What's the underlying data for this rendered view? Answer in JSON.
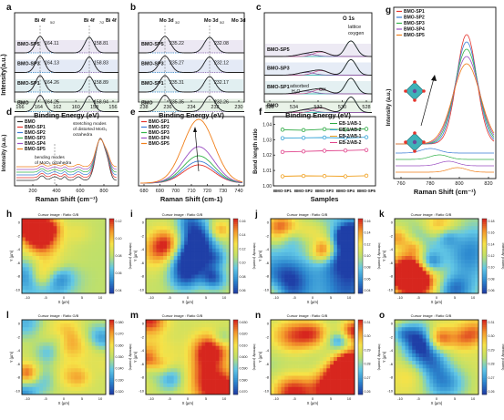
{
  "colors": {
    "frame": "#111111",
    "stack_fill": [
      "#dcd6e9",
      "#cdd9ee",
      "#c9e2e6",
      "#d3e8d1",
      "#e6dcd2"
    ],
    "fit_a": "#7b5aa6",
    "fit_b": "#2e7fc0",
    "fit_c": "#1aa5a0",
    "fit_d": "#c6478a",
    "series": [
      "#2b2b2b",
      "#e5342c",
      "#3a7bd5",
      "#33b34a",
      "#9b4fc2",
      "#f07f1a"
    ],
    "ratio": [
      "#2eaa44",
      "#34a3d6",
      "#f0a020",
      "#e0458c"
    ],
    "heat": [
      "#1f3fa7",
      "#2d8ad0",
      "#63c8e6",
      "#bfe06a",
      "#f6e247",
      "#f49a2c",
      "#d7261e"
    ]
  },
  "panels": {
    "a": {
      "letter": "a",
      "xlabel": "Binding Energy (eV)",
      "ylabel": "Intensity(a.u.)",
      "ticks": [
        "166",
        "164",
        "162",
        "160",
        "158",
        "156"
      ],
      "headers": [
        "Bi 4f",
        "Bi 4f",
        "Bi 4f"
      ],
      "header_subs": [
        "5/2",
        "7/2",
        ""
      ],
      "rows": [
        {
          "label": "BMO-SP5",
          "v1": "164.11",
          "v2": "158.81"
        },
        {
          "label": "BMO-SP3",
          "v1": "164.13",
          "v2": "158.83"
        },
        {
          "label": "BMO-SP1",
          "v1": "164.26",
          "v2": "158.89"
        },
        {
          "label": "BMO",
          "v1": "164.25",
          "v2": "158.94"
        }
      ]
    },
    "b": {
      "letter": "b",
      "xlabel": "Binding Energy (eV)",
      "ticks": [
        "238",
        "236",
        "234",
        "232",
        "230"
      ],
      "headers": [
        "Mo 3d",
        "Mo 3d",
        "Mo 3d"
      ],
      "header_subs": [
        "3/2",
        "5/2",
        ""
      ],
      "rows": [
        {
          "label": "BMO-SP5",
          "v1": "235.22",
          "v2": "232.08"
        },
        {
          "label": "BMO-SP3",
          "v1": "235.27",
          "v2": "232.12"
        },
        {
          "label": "BMO-SP1",
          "v1": "235.31",
          "v2": "232.17"
        },
        {
          "label": "BMO",
          "v1": "235.35",
          "v2": "232.26"
        }
      ]
    },
    "c": {
      "letter": "c",
      "xlabel": "Binding Energy (eV)",
      "ticks": [
        "536",
        "534",
        "532",
        "530",
        "528"
      ],
      "title": "O 1s",
      "lattice1": "lattice",
      "lattice2": "oxygen",
      "adsorbed": "adsorbed",
      "water": "H₂O",
      "oh": "OH",
      "rows": [
        "BMO-SP5",
        "BMO-SP3",
        "BMO-SP1",
        "BMO"
      ]
    },
    "d": {
      "letter": "d",
      "xlabel": "Raman Shift (cm⁻¹)",
      "ylabel": "Intensity (a.u.)",
      "ticks": [
        "200",
        "400",
        "600",
        "800"
      ],
      "legend": [
        "BMO",
        "BMO-SP1",
        "BMO-SP2",
        "BMO-SP3",
        "BMO-SP4",
        "BMO-SP5"
      ],
      "note1": [
        "stretching modes",
        "of distorted MoO₆",
        "octahedra"
      ],
      "note2": [
        "bending modes",
        "of MoO₆ octahedra"
      ]
    },
    "e": {
      "letter": "e",
      "xlabel": "Raman Shift (cm-1)",
      "ticks": [
        "680",
        "690",
        "700",
        "710",
        "720",
        "730",
        "740"
      ],
      "legend": [
        "BMO-SP1",
        "BMO-SP2",
        "BMO-SP3",
        "BMO-SP4",
        "BMO-SP5"
      ]
    },
    "f": {
      "letter": "f",
      "xlabel": "Samples",
      "ylabel": "Bond length ratio",
      "ticks_y": [
        "1.00",
        "1.01",
        "1.02",
        "1.03",
        "1.04"
      ],
      "samples": [
        "BMO-SP1",
        "BMO-SP2",
        "BMO-SP3",
        "BMO-SP4",
        "BMO-SP5"
      ],
      "series": [
        {
          "name": "EB-1/AB-1",
          "values": [
            1.0365,
            1.0362,
            1.0368,
            1.0366,
            1.037
          ]
        },
        {
          "name": "EB-1/AB-2",
          "values": [
            1.031,
            1.0312,
            1.0314,
            1.0311,
            1.0316
          ]
        },
        {
          "name": "EB-2/AB-1",
          "values": [
            1.0062,
            1.0065,
            1.0064,
            1.0062,
            1.0066
          ]
        },
        {
          "name": "EB-2/AB-2",
          "values": [
            1.022,
            1.0224,
            1.0228,
            1.023,
            1.0233
          ]
        }
      ],
      "ylim": [
        1.0,
        1.045
      ]
    },
    "g": {
      "letter": "g",
      "xlabel": "Raman Shift (cm⁻¹)",
      "ylabel": "Intensity (a.u.)",
      "ticks": [
        "760",
        "780",
        "800",
        "820"
      ],
      "legend": [
        "BMO-SP1",
        "BMO-SP2",
        "BMO-SP3",
        "BMO-SP4",
        "BMO-SP5"
      ]
    },
    "maps": [
      {
        "letter": "h",
        "title": "Cursor image : Ratio G/B",
        "xlabel": "X (µm)",
        "ylabel": "Y (µm)",
        "cbar_label": "Intensity (counts)",
        "cbar": [
          "0.12",
          "0.10",
          "0.08",
          "0.06",
          "0.04"
        ]
      },
      {
        "letter": "i",
        "title": "Cursor image : Ratio G/B",
        "xlabel": "X (µm)",
        "ylabel": "Y (µm)",
        "cbar_label": "Intensity (counts)",
        "cbar": [
          "0.16",
          "0.14",
          "0.12",
          "0.10",
          "0.08",
          "0.06"
        ]
      },
      {
        "letter": "j",
        "title": "Cursor image : Ratio G/B",
        "xlabel": "X (µm)",
        "ylabel": "Y (µm)",
        "cbar_label": "Intensity (counts)",
        "cbar": [
          "0.16",
          "0.14",
          "0.12",
          "0.10",
          "0.08",
          "0.06",
          "0.04"
        ]
      },
      {
        "letter": "k",
        "title": "Cursor image : Ratio G/B",
        "xlabel": "X (µm)",
        "ylabel": "Y (µm)",
        "cbar_label": "Intensity (counts)",
        "cbar": [
          "0.18",
          "0.16",
          "0.14",
          "0.12",
          "0.10",
          "0.08",
          "0.06"
        ]
      },
      {
        "letter": "l",
        "title": "Cursor image : Ratio G/B",
        "xlabel": "X (µm)",
        "ylabel": "Y (µm)",
        "cbar_label": "Intensity (counts)",
        "cbar": [
          "0.380",
          "0.370",
          "0.360",
          "0.350",
          "0.340",
          "0.330",
          "0.320"
        ]
      },
      {
        "letter": "m",
        "title": "Cursor image : Ratio G/B",
        "xlabel": "X (µm)",
        "ylabel": "Y (µm)",
        "cbar_label": "Intensity (counts)",
        "cbar": [
          "0.630",
          "0.620",
          "0.610",
          "0.600",
          "0.590",
          "0.580",
          "0.570"
        ]
      },
      {
        "letter": "n",
        "title": "Cursor image : Ratio G/B",
        "xlabel": "X (µm)",
        "ylabel": "Y (µm)",
        "cbar_label": "Intensity (counts)",
        "cbar": [
          "0.31",
          "0.30",
          "0.29",
          "0.28",
          "0.27",
          "0.26"
        ]
      },
      {
        "letter": "o",
        "title": "Cursor image : Ratio G/B",
        "xlabel": "X (µm)",
        "ylabel": "Y (µm)",
        "cbar_label": "Intensity (counts)",
        "cbar": [
          "0.31",
          "0.30",
          "0.29",
          "0.28",
          "0.27",
          "0.26"
        ]
      }
    ],
    "map_ticks_x": [
      "-10",
      "-5",
      "0",
      "5",
      "10"
    ],
    "map_ticks_y": [
      "0",
      "-2",
      "-4",
      "-6",
      "-8",
      "-10"
    ]
  },
  "chart_data": [
    {
      "type": "line",
      "panel": "f",
      "xlabel": "Samples",
      "ylabel": "Bond length ratio",
      "categories": [
        "BMO-SP1",
        "BMO-SP2",
        "BMO-SP3",
        "BMO-SP4",
        "BMO-SP5"
      ],
      "series": [
        {
          "name": "EB-1/AB-1",
          "values": [
            1.0365,
            1.0362,
            1.0368,
            1.0366,
            1.037
          ]
        },
        {
          "name": "EB-1/AB-2",
          "values": [
            1.031,
            1.0312,
            1.0314,
            1.0311,
            1.0316
          ]
        },
        {
          "name": "EB-2/AB-1",
          "values": [
            1.0062,
            1.0065,
            1.0064,
            1.0062,
            1.0066
          ]
        },
        {
          "name": "EB-2/AB-2",
          "values": [
            1.022,
            1.0224,
            1.0228,
            1.023,
            1.0233
          ]
        }
      ],
      "ylim": [
        1.0,
        1.045
      ]
    }
  ]
}
